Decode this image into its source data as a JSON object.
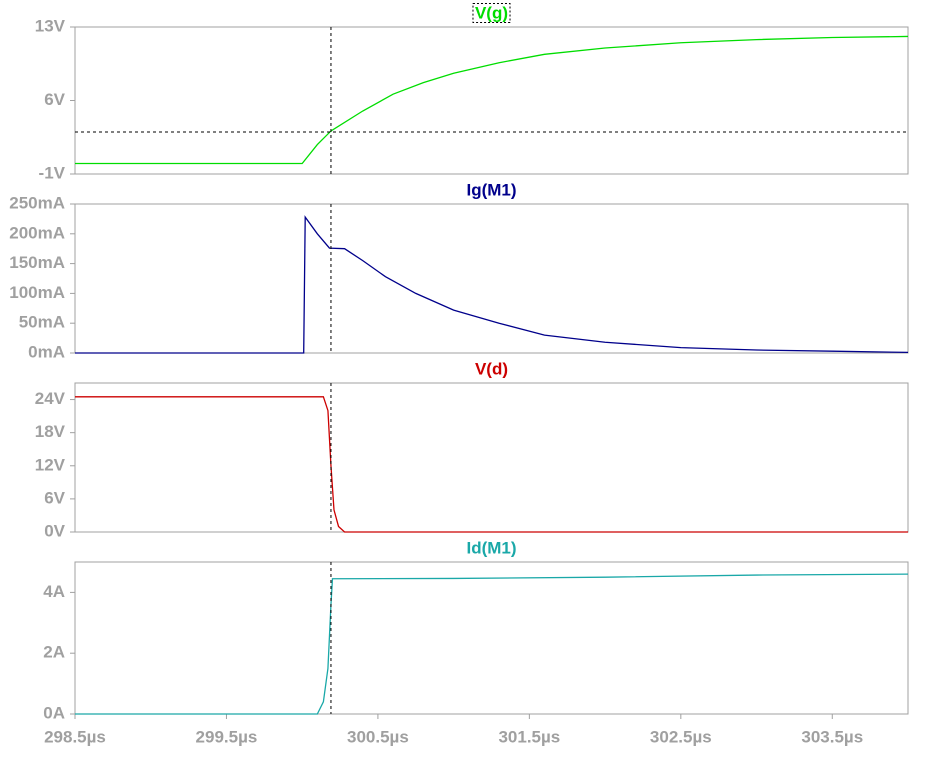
{
  "chart_data": [
    {
      "type": "line",
      "title": "V(g)",
      "color": "#00dd00",
      "x": [
        298.5,
        300.0,
        300.1,
        300.19,
        300.4,
        300.6,
        300.8,
        301.0,
        301.3,
        301.6,
        302.0,
        302.5,
        303.0,
        303.5,
        304.0
      ],
      "values": [
        0,
        0,
        1.8,
        3.1,
        5,
        6.6,
        7.7,
        8.6,
        9.6,
        10.4,
        11.0,
        11.5,
        11.8,
        12.0,
        12.1
      ],
      "xlim": [
        298.5,
        304
      ],
      "ylim": [
        -1,
        13
      ],
      "yticks": [
        {
          "value": 13,
          "label": "13V"
        },
        {
          "value": 6,
          "label": "6V"
        },
        {
          "value": -1,
          "label": "-1V"
        }
      ],
      "cursor_x": 300.19,
      "cursor_y": 3,
      "title_selected": true
    },
    {
      "type": "line",
      "title": "Ig(M1)",
      "color": "#00008b",
      "x": [
        298.5,
        300.0,
        300.01,
        300.02,
        300.1,
        300.18,
        300.28,
        300.4,
        300.55,
        300.75,
        301.0,
        301.3,
        301.6,
        302.0,
        302.5,
        303.0,
        303.5,
        304.0
      ],
      "values": [
        0,
        0,
        0,
        228,
        200,
        176,
        175,
        155,
        128,
        100,
        72,
        50,
        30,
        18,
        9,
        5,
        3,
        1
      ],
      "xlim": [
        298.5,
        304
      ],
      "ylim": [
        0,
        250
      ],
      "yticks": [
        {
          "value": 0,
          "label": "0mA"
        },
        {
          "value": 50,
          "label": "50mA"
        },
        {
          "value": 100,
          "label": "100mA"
        },
        {
          "value": 150,
          "label": "150mA"
        },
        {
          "value": 200,
          "label": "200mA"
        },
        {
          "value": 250,
          "label": "250mA"
        }
      ],
      "cursor_x": 300.19
    },
    {
      "type": "line",
      "title": "V(d)",
      "color": "#cc0000",
      "x": [
        298.5,
        300.14,
        300.17,
        300.19,
        300.21,
        300.24,
        300.28,
        304.0
      ],
      "values": [
        24.5,
        24.5,
        22,
        12,
        4,
        1,
        0,
        0
      ],
      "xlim": [
        298.5,
        304
      ],
      "ylim": [
        0,
        27
      ],
      "yticks": [
        {
          "value": 0,
          "label": "0V"
        },
        {
          "value": 6,
          "label": "6V"
        },
        {
          "value": 12,
          "label": "12V"
        },
        {
          "value": 18,
          "label": "18V"
        },
        {
          "value": 24,
          "label": "24V"
        }
      ],
      "cursor_x": 300.19
    },
    {
      "type": "line",
      "title": "Id(M1)",
      "color": "#1aa8a8",
      "x": [
        298.5,
        300.1,
        300.14,
        300.17,
        300.19,
        300.2,
        301.0,
        302.0,
        303.0,
        304.0
      ],
      "values": [
        0,
        0,
        0.4,
        1.5,
        3.6,
        4.45,
        4.46,
        4.5,
        4.57,
        4.6
      ],
      "xlim": [
        298.5,
        304
      ],
      "ylim": [
        0,
        5
      ],
      "yticks": [
        {
          "value": 0,
          "label": "0A"
        },
        {
          "value": 2,
          "label": "2A"
        },
        {
          "value": 4,
          "label": "4A"
        }
      ],
      "xticks": [
        {
          "value": 298.5,
          "label": "298.5µs"
        },
        {
          "value": 299.5,
          "label": "299.5µs"
        },
        {
          "value": 300.5,
          "label": "300.5µs"
        },
        {
          "value": 301.5,
          "label": "301.5µs"
        },
        {
          "value": 302.5,
          "label": "302.5µs"
        },
        {
          "value": 303.5,
          "label": "303.5µs"
        }
      ],
      "cursor_x": 300.19
    }
  ]
}
